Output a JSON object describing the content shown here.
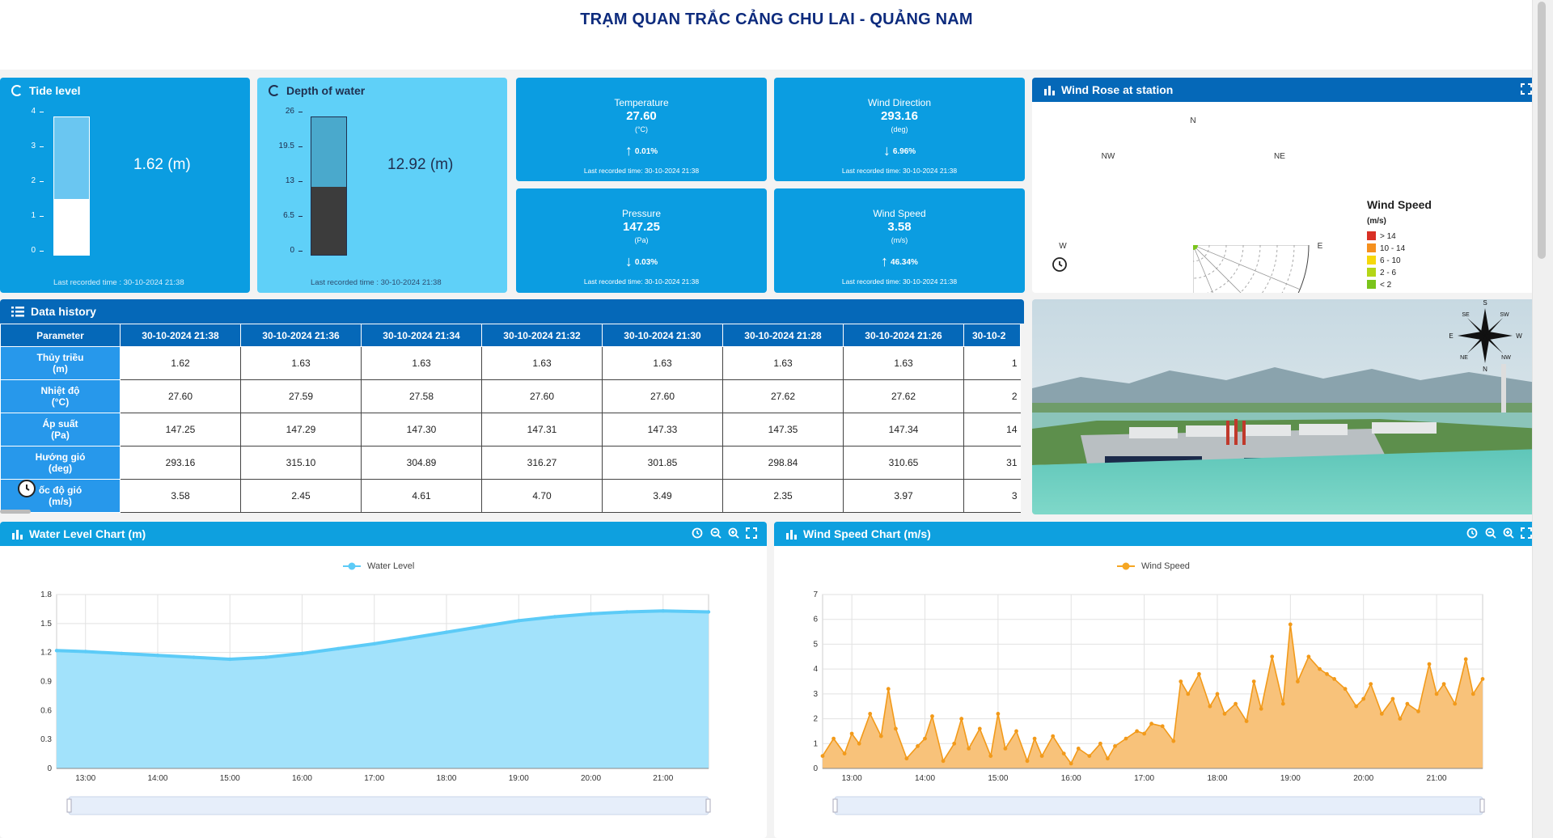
{
  "page": {
    "title": "TRẠM QUAN TRẮC CẢNG CHU LAI - QUẢNG NAM"
  },
  "tide": {
    "title": "Tide level",
    "value": "1.62 (m)",
    "level": 1.62,
    "max": 4,
    "ticks": [
      "4",
      "3",
      "2",
      "1",
      "0"
    ],
    "last_time": "Last recorded time : 30-10-2024 21:38"
  },
  "depth": {
    "title": "Depth of water",
    "value": "12.92 (m)",
    "level": 12.92,
    "max": 26,
    "ticks": [
      "26",
      "19.5",
      "13",
      "6.5",
      "0"
    ],
    "last_time": "Last recorded time : 30-10-2024 21:38"
  },
  "stats": {
    "temperature": {
      "label": "Temperature",
      "value": "27.60",
      "unit": "(°C)",
      "direction": "up",
      "change": "0.01%",
      "time": "Last recorded time: 30-10-2024 21:38"
    },
    "wind_direction": {
      "label": "Wind Direction",
      "value": "293.16",
      "unit": "(deg)",
      "direction": "down",
      "change": "6.96%",
      "time": "Last recorded time: 30-10-2024 21:38"
    },
    "pressure": {
      "label": "Pressure",
      "value": "147.25",
      "unit": "(Pa)",
      "direction": "down",
      "change": "0.03%",
      "time": "Last recorded time: 30-10-2024 21:38"
    },
    "wind_speed": {
      "label": "Wind Speed",
      "value": "3.58",
      "unit": "(m/s)",
      "direction": "up",
      "change": "46.34%",
      "time": "Last recorded time: 30-10-2024 21:38"
    }
  },
  "windrose": {
    "title": "Wind Rose at station",
    "directions": {
      "n": "N",
      "ne": "NE",
      "e": "E",
      "nw": "NW",
      "w": "W"
    },
    "legend_title": "Wind Speed",
    "legend_unit": "(m/s)",
    "legend": [
      {
        "label": "> 14",
        "color": "#d93025"
      },
      {
        "label": "10 - 14",
        "color": "#f5901e"
      },
      {
        "label": "6 - 10",
        "color": "#f6d80a"
      },
      {
        "label": "2 - 6",
        "color": "#b4d617"
      },
      {
        "label": "< 2",
        "color": "#7ac41b"
      }
    ]
  },
  "history": {
    "title": "Data history",
    "header": "Parameter",
    "columns": [
      "30-10-2024 21:38",
      "30-10-2024 21:36",
      "30-10-2024 21:34",
      "30-10-2024 21:32",
      "30-10-2024 21:30",
      "30-10-2024 21:28",
      "30-10-2024 21:26",
      "30-10-2"
    ],
    "rows": [
      {
        "param": [
          "Thủy triều",
          "(m)"
        ],
        "values": [
          "1.62",
          "1.63",
          "1.63",
          "1.63",
          "1.63",
          "1.63",
          "1.63",
          "1"
        ]
      },
      {
        "param": [
          "Nhiệt độ",
          "(°C)"
        ],
        "values": [
          "27.60",
          "27.59",
          "27.58",
          "27.60",
          "27.60",
          "27.62",
          "27.62",
          "2"
        ]
      },
      {
        "param": [
          "Áp suất",
          "(Pa)"
        ],
        "values": [
          "147.25",
          "147.29",
          "147.30",
          "147.31",
          "147.33",
          "147.35",
          "147.34",
          "14"
        ]
      },
      {
        "param": [
          "Hướng gió",
          "(deg)"
        ],
        "values": [
          "293.16",
          "315.10",
          "304.89",
          "316.27",
          "301.85",
          "298.84",
          "310.65",
          "31"
        ]
      },
      {
        "param": [
          "ốc độ gió",
          "(m/s)"
        ],
        "values": [
          "3.58",
          "2.45",
          "4.61",
          "4.70",
          "3.49",
          "2.35",
          "3.97",
          "3"
        ]
      }
    ]
  },
  "photo": {
    "compass": {
      "s": "S",
      "sw": "SW",
      "w": "W",
      "nw": "NW",
      "n": "N",
      "ne": "NE",
      "e": "E",
      "se": "SE"
    }
  },
  "water_chart": {
    "title": "Water Level Chart (m)",
    "legend": "Water Level",
    "color": "#5ccbf7"
  },
  "wind_chart": {
    "title": "Wind Speed Chart (m/s)",
    "legend": "Wind Speed",
    "color": "#f5a623"
  },
  "chart_data": [
    {
      "type": "area",
      "title": "Water Level Chart (m)",
      "series": [
        {
          "name": "Water Level"
        }
      ],
      "x_ticks": [
        "13:00",
        "14:00",
        "15:00",
        "16:00",
        "17:00",
        "18:00",
        "19:00",
        "20:00",
        "21:00"
      ],
      "y_ticks": [
        "0",
        "0.3",
        "0.6",
        "0.9",
        "1.2",
        "1.5",
        "1.8"
      ],
      "ylim": [
        0,
        1.8
      ],
      "x": [
        12.6,
        13.0,
        13.5,
        14.0,
        14.5,
        15.0,
        15.5,
        16.0,
        16.5,
        17.0,
        17.5,
        18.0,
        18.5,
        19.0,
        19.5,
        20.0,
        20.5,
        21.0,
        21.63
      ],
      "values": [
        1.22,
        1.21,
        1.19,
        1.17,
        1.15,
        1.13,
        1.15,
        1.19,
        1.24,
        1.29,
        1.35,
        1.41,
        1.47,
        1.53,
        1.57,
        1.6,
        1.62,
        1.63,
        1.62
      ]
    },
    {
      "type": "area",
      "title": "Wind Speed Chart (m/s)",
      "series": [
        {
          "name": "Wind Speed"
        }
      ],
      "x_ticks": [
        "13:00",
        "14:00",
        "15:00",
        "16:00",
        "17:00",
        "18:00",
        "19:00",
        "20:00",
        "21:00"
      ],
      "y_ticks": [
        "0",
        "1",
        "2",
        "3",
        "4",
        "5",
        "6",
        "7"
      ],
      "ylim": [
        0,
        7
      ],
      "x": [
        12.6,
        12.75,
        12.9,
        13.0,
        13.1,
        13.25,
        13.4,
        13.5,
        13.6,
        13.75,
        13.9,
        14.0,
        14.1,
        14.25,
        14.4,
        14.5,
        14.6,
        14.75,
        14.9,
        15.0,
        15.1,
        15.25,
        15.4,
        15.5,
        15.6,
        15.75,
        15.9,
        16.0,
        16.1,
        16.25,
        16.4,
        16.5,
        16.6,
        16.75,
        16.9,
        17.0,
        17.1,
        17.25,
        17.4,
        17.5,
        17.6,
        17.75,
        17.9,
        18.0,
        18.1,
        18.25,
        18.4,
        18.5,
        18.6,
        18.75,
        18.9,
        19.0,
        19.1,
        19.25,
        19.4,
        19.5,
        19.6,
        19.75,
        19.9,
        20.0,
        20.1,
        20.25,
        20.4,
        20.5,
        20.6,
        20.75,
        20.9,
        21.0,
        21.1,
        21.25,
        21.4,
        21.5,
        21.63
      ],
      "values": [
        0.5,
        1.2,
        0.6,
        1.4,
        1.0,
        2.2,
        1.3,
        3.2,
        1.6,
        0.4,
        0.9,
        1.2,
        2.1,
        0.3,
        1.0,
        2.0,
        0.8,
        1.6,
        0.5,
        2.2,
        0.8,
        1.5,
        0.3,
        1.2,
        0.5,
        1.3,
        0.6,
        0.2,
        0.8,
        0.5,
        1.0,
        0.4,
        0.9,
        1.2,
        1.5,
        1.4,
        1.8,
        1.7,
        1.1,
        3.5,
        3.0,
        3.8,
        2.5,
        3.0,
        2.2,
        2.6,
        1.9,
        3.5,
        2.4,
        4.5,
        2.6,
        5.8,
        3.5,
        4.5,
        4.0,
        3.8,
        3.6,
        3.2,
        2.5,
        2.8,
        3.4,
        2.2,
        2.8,
        2.0,
        2.6,
        2.3,
        4.2,
        3.0,
        3.4,
        2.6,
        4.4,
        3.0,
        3.6
      ]
    }
  ]
}
